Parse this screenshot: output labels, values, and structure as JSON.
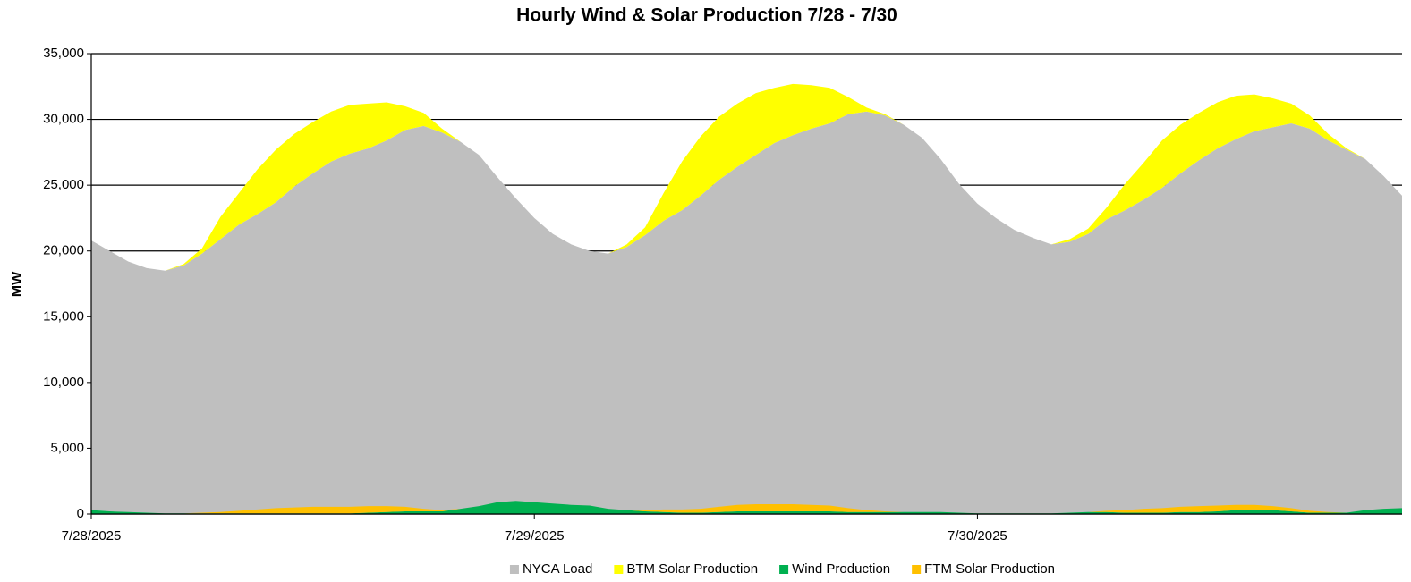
{
  "chart_data": {
    "type": "area",
    "title": "Hourly Wind & Solar Production 7/28 - 7/30",
    "y_label": "MW",
    "x": [
      "7/28/2025",
      null,
      null,
      null,
      null,
      null,
      null,
      null,
      null,
      null,
      null,
      null,
      null,
      null,
      null,
      null,
      null,
      null,
      null,
      null,
      null,
      null,
      null,
      null,
      "7/29/2025",
      null,
      null,
      null,
      null,
      null,
      null,
      null,
      null,
      null,
      null,
      null,
      null,
      null,
      null,
      null,
      null,
      null,
      null,
      null,
      null,
      null,
      null,
      null,
      "7/30/2025",
      null,
      null,
      null,
      null,
      null,
      null,
      null,
      null,
      null,
      null,
      null,
      null,
      null,
      null,
      null,
      null,
      null,
      null,
      null,
      null,
      null,
      null,
      null
    ],
    "ylim": [
      0,
      35000
    ],
    "yticks": [
      0,
      {
        "value": 5000,
        "label": "5,000"
      },
      {
        "value": 10000,
        "label": "10,000"
      },
      {
        "value": 15000,
        "label": "15,000"
      },
      {
        "value": 20000,
        "label": "20,000"
      },
      {
        "value": 25000,
        "label": "25,000"
      },
      {
        "value": 30000,
        "label": "30,000"
      },
      {
        "value": 35000,
        "label": "35,000"
      }
    ],
    "grid": true,
    "legend": "bottom",
    "series": [
      {
        "name": "NYCA Load",
        "color": "#bfbfbf",
        "values": [
          20800,
          20000,
          19200,
          18700,
          18500,
          18900,
          19800,
          20900,
          22000,
          22800,
          23700,
          24900,
          25900,
          26800,
          27400,
          27800,
          28400,
          29200,
          29500,
          29000,
          28300,
          27300,
          25600,
          24000,
          22500,
          21300,
          20500,
          20000,
          19800,
          20300,
          21200,
          22300,
          23100,
          24200,
          25400,
          26400,
          27300,
          28200,
          28800,
          29300,
          29700,
          30400,
          30600,
          30300,
          29600,
          28600,
          27000,
          25100,
          23600,
          22500,
          21600,
          21000,
          20500,
          20700,
          21300,
          22400,
          23100,
          23900,
          24800,
          25900,
          26900,
          27800,
          28500,
          29100,
          29400,
          29700,
          29300,
          28400,
          27700,
          27000,
          25700,
          24200
        ]
      },
      {
        "name": "BTM Solar Production",
        "color": "#ffff00",
        "stack_on": "NYCA Load",
        "values": [
          0,
          0,
          0,
          0,
          0,
          100,
          400,
          1700,
          2400,
          3400,
          4000,
          4000,
          3900,
          3800,
          3700,
          3400,
          2900,
          1800,
          1000,
          300,
          0,
          0,
          0,
          0,
          0,
          0,
          0,
          0,
          0,
          200,
          600,
          2100,
          3700,
          4500,
          4800,
          4800,
          4700,
          4200,
          3900,
          3300,
          2700,
          1300,
          300,
          100,
          0,
          0,
          0,
          0,
          0,
          0,
          0,
          0,
          0,
          200,
          400,
          900,
          2000,
          2800,
          3600,
          3700,
          3600,
          3500,
          3300,
          2800,
          2200,
          1500,
          1000,
          500,
          100,
          0,
          0,
          0
        ]
      },
      {
        "name": "Wind Production",
        "color": "#00b050",
        "values": [
          300,
          200,
          150,
          100,
          50,
          50,
          50,
          50,
          50,
          50,
          50,
          50,
          50,
          50,
          50,
          100,
          150,
          200,
          200,
          200,
          400,
          600,
          900,
          1000,
          900,
          800,
          700,
          650,
          400,
          300,
          200,
          150,
          100,
          100,
          150,
          200,
          200,
          200,
          200,
          200,
          200,
          150,
          150,
          150,
          150,
          150,
          150,
          100,
          50,
          50,
          50,
          50,
          50,
          100,
          150,
          150,
          100,
          100,
          100,
          150,
          150,
          200,
          300,
          350,
          300,
          200,
          100,
          100,
          100,
          300,
          400,
          450
        ]
      },
      {
        "name": "FTM Solar Production",
        "color": "#ffc000",
        "stack_on": "Wind Production",
        "values": [
          0,
          0,
          0,
          0,
          0,
          0,
          50,
          100,
          200,
          300,
          400,
          450,
          500,
          500,
          500,
          500,
          450,
          350,
          200,
          100,
          0,
          0,
          0,
          0,
          0,
          0,
          0,
          0,
          0,
          0,
          100,
          200,
          250,
          300,
          400,
          500,
          550,
          550,
          550,
          500,
          450,
          300,
          150,
          50,
          0,
          0,
          0,
          0,
          0,
          0,
          0,
          0,
          0,
          0,
          0,
          100,
          200,
          300,
          350,
          400,
          450,
          450,
          400,
          350,
          300,
          250,
          150,
          50,
          0,
          0,
          0,
          0
        ]
      }
    ]
  }
}
